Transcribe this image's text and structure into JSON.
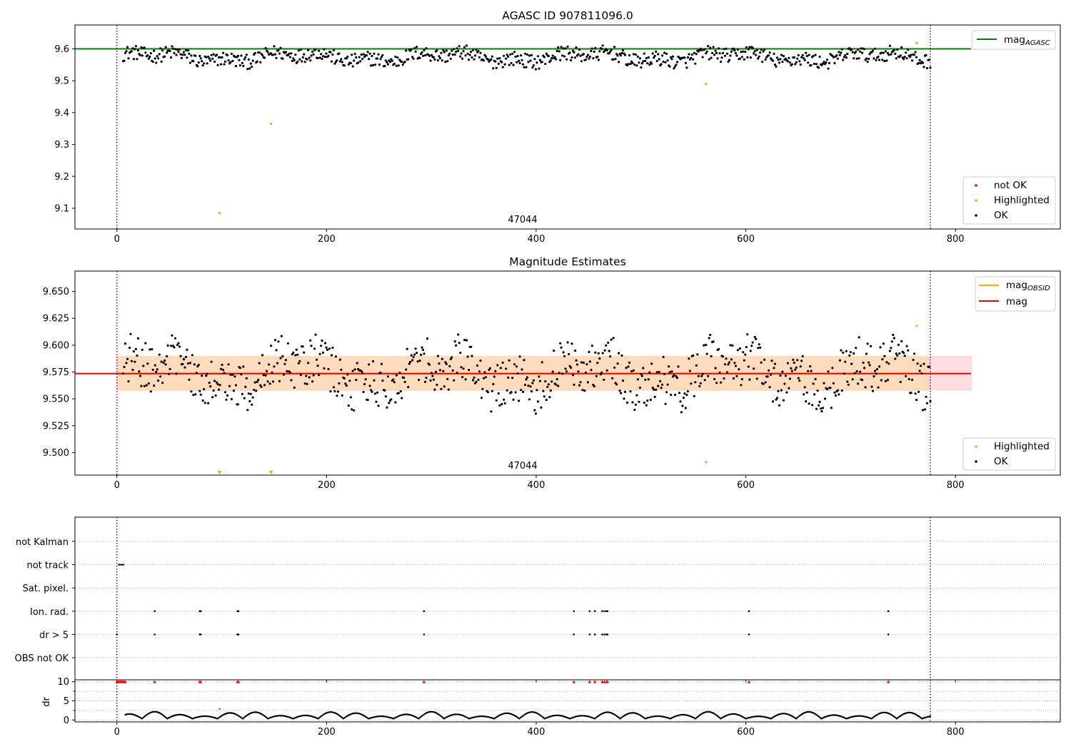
{
  "figure": {
    "background": "#ffffff"
  },
  "colors": {
    "ok": "#000000",
    "highlighted": "#ffa500",
    "not_ok": "#ff0000",
    "agasc_line": "#008000",
    "mag_line": "#ff0000",
    "mag_obsid": "#ffa500",
    "band_outer": "#ffc0cb",
    "band_inner": "#ffdab9",
    "obs_line": "#800080",
    "grid": "#b0b0b0"
  },
  "chart_data": [
    {
      "type": "scatter",
      "title": "AGASC ID 907811096.0",
      "xlim": [
        -40,
        900
      ],
      "ylim": [
        9.035,
        9.675
      ],
      "xticks": [
        "0",
        "200",
        "400",
        "600",
        "800"
      ],
      "yticks": [
        "9.1",
        "9.2",
        "9.3",
        "9.4",
        "9.5",
        "9.6"
      ],
      "obsid_label": "47044",
      "obs_bounds": [
        0,
        776
      ],
      "agasc_mag": 9.6,
      "legend_lines": [
        {
          "name_main": "mag",
          "name_sub": "AGASC",
          "color": "#008000"
        }
      ],
      "legend_markers": [
        {
          "name": "not OK",
          "color": "#ff0000"
        },
        {
          "name": "Highlighted",
          "color": "#ffa500"
        },
        {
          "name": "OK",
          "color": "#000000"
        }
      ],
      "series": [
        {
          "name": "OK",
          "generator": "agasc_points",
          "count": 760,
          "x_range": [
            6,
            776
          ],
          "y_mean": 9.574,
          "y_spread": 0.045
        },
        {
          "name": "Highlighted",
          "points": [
            [
              98,
              9.085
            ],
            [
              147,
              9.365
            ],
            [
              562,
              9.49
            ],
            [
              763,
              9.618
            ]
          ]
        }
      ]
    },
    {
      "type": "scatter",
      "title": "Magnitude Estimates",
      "xlim": [
        -40,
        900
      ],
      "ylim": [
        9.479,
        9.669
      ],
      "xticks": [
        "0",
        "200",
        "400",
        "600",
        "800"
      ],
      "yticks": [
        "9.500",
        "9.525",
        "9.550",
        "9.575",
        "9.600",
        "9.625",
        "9.650"
      ],
      "obsid_label": "47044",
      "obs_bounds": [
        0,
        776
      ],
      "mag_obsid": 9.5735,
      "mag": 9.5735,
      "band_outer": {
        "x": [
          0,
          816
        ],
        "y": [
          9.5575,
          9.59
        ]
      },
      "band_inner": {
        "x": [
          0,
          776
        ],
        "y": [
          9.5575,
          9.59
        ]
      },
      "legend_lines": [
        {
          "name_main": "mag",
          "name_sub": "OBSID",
          "color": "#ffa500"
        },
        {
          "name_main": "mag",
          "name_sub": "",
          "color": "#ff0000"
        }
      ],
      "legend_markers": [
        {
          "name": "Highlighted",
          "color": "#ffa500"
        },
        {
          "name": "OK",
          "color": "#000000"
        }
      ],
      "series": [
        {
          "name": "OK",
          "generator": "mag_points",
          "count": 760,
          "x_range": [
            6,
            776
          ],
          "y_mean": 9.574,
          "y_spread": 0.045
        },
        {
          "name": "Highlighted",
          "points": [
            [
              562,
              9.491
            ],
            [
              763,
              9.618
            ]
          ]
        },
        {
          "name": "Highlighted (off-scale)",
          "points": [
            [
              98,
              9.481
            ],
            [
              147,
              9.481
            ]
          ]
        }
      ]
    },
    {
      "type": "scatter",
      "title": "",
      "xlim": [
        -40,
        900
      ],
      "xticks": [
        "0",
        "200",
        "400",
        "600",
        "800"
      ],
      "flag_rows": [
        "not Kalman",
        "not track",
        "Sat. pixel.",
        "Ion. rad.",
        "dr > 5",
        "OBS not OK"
      ],
      "flag_points": {
        "not track": [
          2,
          4,
          6
        ],
        "Ion. rad.": [
          36,
          79,
          80,
          115,
          116,
          293,
          436,
          451,
          456,
          463,
          465,
          467,
          468,
          603,
          736
        ],
        "dr > 5": [
          0,
          36,
          79,
          80,
          115,
          116,
          293,
          436,
          451,
          456,
          463,
          465,
          467,
          468,
          603,
          736
        ]
      },
      "obs_bounds": [
        0,
        776
      ]
    },
    {
      "type": "scatter",
      "title": "",
      "xlim": [
        -40,
        900
      ],
      "ylim": [
        -0.5,
        10.5
      ],
      "ylabel": "dr",
      "xticks": [
        "0",
        "200",
        "400",
        "600",
        "800"
      ],
      "yticks": [
        "0",
        "5",
        "10"
      ],
      "dr_cap": 10,
      "capped_x": [
        0,
        1,
        2,
        3,
        4,
        5,
        6,
        7,
        8,
        36,
        79,
        80,
        115,
        116,
        293,
        436,
        451,
        456,
        463,
        465,
        467,
        468,
        603,
        736
      ],
      "extra_points": [
        [
          98,
          2.9
        ]
      ],
      "series": [
        {
          "name": "dr",
          "generator": "dr_points",
          "x_range": [
            8,
            776
          ]
        }
      ],
      "obs_bounds": [
        0,
        776
      ]
    }
  ]
}
